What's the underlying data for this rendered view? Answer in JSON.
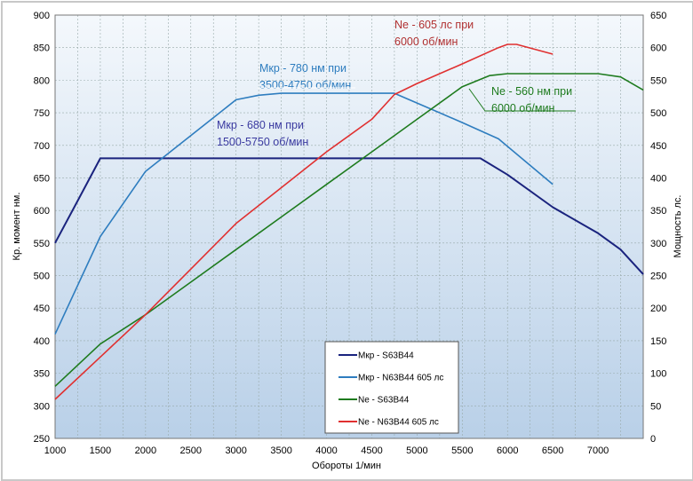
{
  "chart_data": {
    "type": "line",
    "xlabel": "Обороты  1/мин",
    "ylabel": "Кр. момент  нм.",
    "y2label": "Мощность  лс.",
    "xlim": [
      1000,
      7500
    ],
    "ylim": [
      250,
      900
    ],
    "y2lim": [
      0,
      650
    ],
    "xticks": [
      1000,
      1500,
      2000,
      2500,
      3000,
      3500,
      4000,
      4500,
      5000,
      5500,
      6000,
      6500,
      7000
    ],
    "yticks": [
      250,
      300,
      350,
      400,
      450,
      500,
      550,
      600,
      650,
      700,
      750,
      800,
      850,
      900
    ],
    "y2ticks": [
      0,
      50,
      100,
      150,
      200,
      250,
      300,
      350,
      400,
      450,
      500,
      550,
      600,
      650
    ],
    "grid": true,
    "legend_position": "bottom-center",
    "series": [
      {
        "name": "Мкр - S63B44",
        "axis": "left",
        "color": "#1a237e",
        "x": [
          1000,
          1250,
          1500,
          2000,
          3000,
          4000,
          5000,
          5700,
          6000,
          6500,
          7000,
          7250,
          7500
        ],
        "y": [
          550,
          615,
          680,
          680,
          680,
          680,
          680,
          680,
          655,
          605,
          565,
          540,
          502
        ]
      },
      {
        "name": "Мкр - N63B44  605 лс",
        "axis": "left",
        "color": "#2e7dbf",
        "x": [
          1000,
          1500,
          2000,
          2500,
          3000,
          3250,
          3500,
          4750,
          5000,
          5500,
          5900,
          6500
        ],
        "y": [
          410,
          560,
          660,
          715,
          770,
          777,
          780,
          780,
          765,
          735,
          710,
          640
        ]
      },
      {
        "name": "Ne  -  S63B44",
        "axis": "right",
        "color": "#1e7b1e",
        "x": [
          1000,
          1500,
          2000,
          2500,
          3000,
          3500,
          4000,
          4500,
          5000,
          5500,
          5800,
          6000,
          7000,
          7250,
          7500
        ],
        "y": [
          80,
          145,
          190,
          240,
          290,
          340,
          390,
          440,
          490,
          540,
          557,
          560,
          560,
          555,
          535
        ]
      },
      {
        "name": "Ne - N63B44  605 лс",
        "axis": "right",
        "color": "#e03030",
        "x": [
          1000,
          1500,
          2000,
          2500,
          3000,
          3500,
          4000,
          4500,
          4750,
          5000,
          5500,
          5900,
          6000,
          6100,
          6500
        ],
        "y": [
          60,
          125,
          190,
          260,
          330,
          385,
          440,
          490,
          528,
          545,
          575,
          600,
          605,
          605,
          590
        ]
      }
    ],
    "annotations": [
      {
        "line1": "Ne - 605 лс при",
        "line2": "6000 об/мин",
        "color": "#b03030"
      },
      {
        "line1": "Мкр - 780 нм при",
        "line2": "3500-4750 об/мин",
        "color": "#2e7dbf"
      },
      {
        "line1": "Мкр - 680 нм при",
        "line2": "1500-5750 об/мин",
        "color": "#3a3aa0"
      },
      {
        "line1": "Ne - 560 нм при",
        "line2": "6000 об/мин",
        "color": "#1e7b1e"
      }
    ]
  }
}
